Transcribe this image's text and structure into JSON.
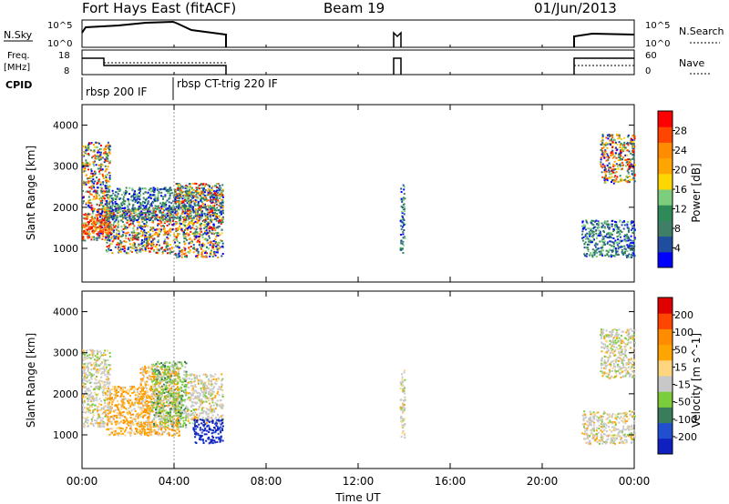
{
  "header": {
    "station": "Fort Hays East (fitACF)",
    "beam": "Beam 19",
    "date": "01/Jun/2013"
  },
  "strips": {
    "nsky": {
      "label": "N.Sky",
      "ticks_left": [
        "10^5",
        "10^0"
      ],
      "ticks_right": [
        "10^5",
        "10^0"
      ],
      "right_label": "N.Search"
    },
    "freq": {
      "label_line1": "Freq.",
      "label_line2": "[MHz]",
      "ticks_left": [
        "18",
        "8"
      ],
      "ticks_right": [
        "60",
        "0"
      ],
      "right_label": "Nave"
    },
    "cpid": {
      "label": "CPID",
      "programs": [
        "rbsp 200 IF",
        "rbsp CT-trig 220 IF"
      ]
    }
  },
  "x_axis": {
    "label": "Time UT",
    "ticks": [
      "00:00",
      "04:00",
      "08:00",
      "12:00",
      "16:00",
      "20:00",
      "00:00"
    ]
  },
  "chart_data": [
    {
      "type": "heatmap",
      "name": "power",
      "ylabel": "Slant Range [km]",
      "xlabel": "Time UT",
      "xlim_hours": [
        0,
        24
      ],
      "ylim": [
        180,
        4500
      ],
      "yticks": [
        "1000",
        "2000",
        "3000",
        "4000"
      ],
      "colorbar": {
        "label": "Power [dB]",
        "ticks": [
          "4",
          "8",
          "12",
          "16",
          "20",
          "24",
          "28"
        ],
        "colors": [
          "#0000ff",
          "#1f4e9e",
          "#3f7f68",
          "#2e8b57",
          "#7ccd7c",
          "#ffd700",
          "#ffa500",
          "#ff8c00",
          "#ff4500",
          "#ff0000"
        ]
      },
      "echo_regions": [
        {
          "t0": 0.0,
          "t1": 1.2,
          "r0": 1200,
          "r1": 3600,
          "level": "mixed"
        },
        {
          "t0": 0.0,
          "t1": 1.2,
          "r0": 1350,
          "r1": 1850,
          "level": "high"
        },
        {
          "t0": 1.0,
          "t1": 4.0,
          "r0": 900,
          "r1": 2000,
          "level": "mixed"
        },
        {
          "t0": 1.0,
          "t1": 6.1,
          "r0": 1700,
          "r1": 2500,
          "level": "low"
        },
        {
          "t0": 4.0,
          "t1": 6.1,
          "r0": 800,
          "r1": 2600,
          "level": "mixed"
        },
        {
          "t0": 13.8,
          "t1": 14.0,
          "r0": 900,
          "r1": 2600,
          "level": "low"
        },
        {
          "t0": 21.7,
          "t1": 24.0,
          "r0": 800,
          "r1": 1700,
          "level": "low"
        },
        {
          "t0": 22.5,
          "t1": 24.0,
          "r0": 2600,
          "r1": 3800,
          "level": "mixed"
        }
      ]
    },
    {
      "type": "heatmap",
      "name": "velocity",
      "ylabel": "Slant Range [km]",
      "xlabel": "Time UT",
      "xlim_hours": [
        0,
        24
      ],
      "ylim": [
        180,
        4500
      ],
      "yticks": [
        "1000",
        "2000",
        "3000",
        "4000"
      ],
      "colorbar": {
        "label": "Velocity [m s^-1]",
        "ticks": [
          "200",
          "100",
          "50",
          "15",
          "-15",
          "-50",
          "-100",
          "-200"
        ],
        "colors": [
          "#1020c0",
          "#2050d0",
          "#3a7d5a",
          "#7ccd3c",
          "#c8c8c8",
          "#ffd580",
          "#ffa500",
          "#ff8c00",
          "#ff4500",
          "#e00000"
        ]
      },
      "echo_regions": [
        {
          "t0": 0.0,
          "t1": 1.2,
          "r0": 1200,
          "r1": 3100,
          "level": "gray"
        },
        {
          "t0": 1.0,
          "t1": 3.0,
          "r0": 1000,
          "r1": 2200,
          "level": "orange"
        },
        {
          "t0": 2.5,
          "t1": 4.2,
          "r0": 1000,
          "r1": 2700,
          "level": "orange"
        },
        {
          "t0": 3.0,
          "t1": 4.5,
          "r0": 1200,
          "r1": 2800,
          "level": "green"
        },
        {
          "t0": 4.5,
          "t1": 6.1,
          "r0": 1300,
          "r1": 2500,
          "level": "gray"
        },
        {
          "t0": 4.8,
          "t1": 6.1,
          "r0": 800,
          "r1": 1400,
          "level": "blue"
        },
        {
          "t0": 13.8,
          "t1": 14.0,
          "r0": 900,
          "r1": 2600,
          "level": "gray"
        },
        {
          "t0": 21.7,
          "t1": 24.0,
          "r0": 800,
          "r1": 1600,
          "level": "gray"
        },
        {
          "t0": 22.5,
          "t1": 24.0,
          "r0": 2400,
          "r1": 3600,
          "level": "gray"
        }
      ]
    }
  ]
}
